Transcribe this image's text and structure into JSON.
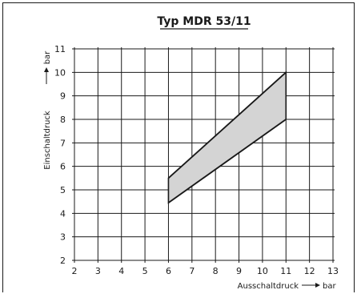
{
  "chart_data": {
    "type": "area",
    "title": "Typ MDR 53/11",
    "xlabel": "Ausschaltdruck",
    "xunit": "bar",
    "ylabel": "Einschaltdruck",
    "yunit": "bar",
    "xlim": [
      2,
      13
    ],
    "ylim": [
      2,
      11
    ],
    "grid": true,
    "x_ticks": [
      2,
      3,
      4,
      5,
      6,
      7,
      8,
      9,
      10,
      11,
      12,
      13
    ],
    "y_ticks": [
      2,
      3,
      4,
      5,
      6,
      7,
      8,
      9,
      10,
      11
    ],
    "region": {
      "upper": [
        [
          6,
          5.5
        ],
        [
          11,
          10
        ]
      ],
      "lower": [
        [
          6,
          4.45
        ],
        [
          11,
          8
        ]
      ]
    },
    "fill_color": "#d4d4d4",
    "line_color": "#1a1a1a"
  }
}
